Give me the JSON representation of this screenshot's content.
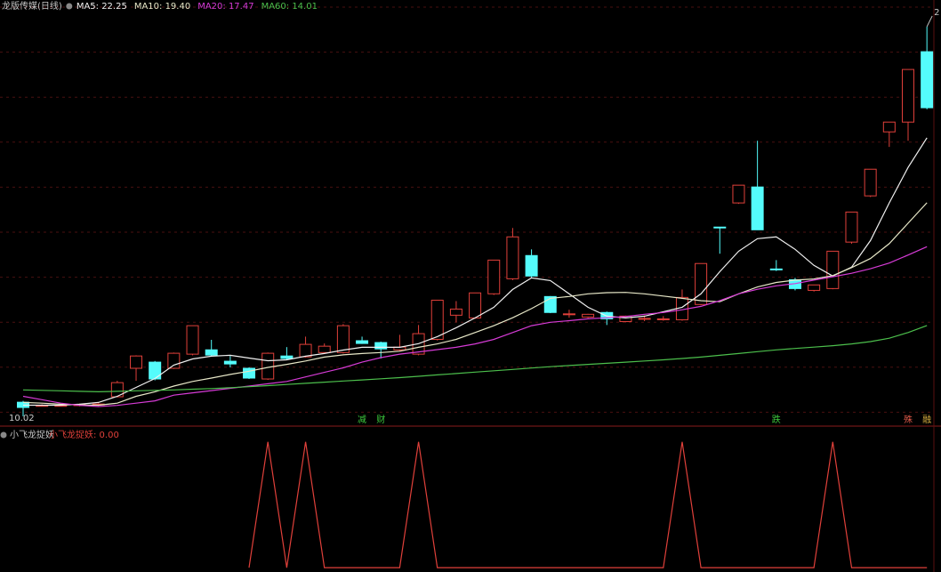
{
  "header": {
    "title": "龙版传媒(日线)"
  },
  "chart_data": [
    {
      "type": "candlestick",
      "ylim": [
        9.63,
        28.3
      ],
      "up_color": "#e0403a",
      "down_color": "#54fcfc",
      "open": [
        10.64,
        10.49,
        10.5,
        10.52,
        10.53,
        10.88,
        12.13,
        12.4,
        12.13,
        12.75,
        12.94,
        12.44,
        12.13,
        11.66,
        12.67,
        12.63,
        12.82,
        12.82,
        13.34,
        13.26,
        12.94,
        12.75,
        13.4,
        14.46,
        14.34,
        15.4,
        16.06,
        17.08,
        15.28,
        14.5,
        14.38,
        14.58,
        14.18,
        14.3,
        14.3,
        14.26,
        14.93,
        18.33,
        19.39,
        20.09,
        16.49,
        16.02,
        15.55,
        15.63,
        17.67,
        19.7,
        22.51,
        22.94,
        26.03
      ],
      "high": [
        10.7,
        10.55,
        10.56,
        10.58,
        10.6,
        11.58,
        12.7,
        12.45,
        12.82,
        14.0,
        13.38,
        12.67,
        12.17,
        12.82,
        13.06,
        13.52,
        13.22,
        14.07,
        13.52,
        13.3,
        13.6,
        14.03,
        15.12,
        15.08,
        15.44,
        16.88,
        18.29,
        17.35,
        15.3,
        14.7,
        14.52,
        14.62,
        14.44,
        14.45,
        14.42,
        15.59,
        16.73,
        18.33,
        20.17,
        22.12,
        16.88,
        16.1,
        15.79,
        17.27,
        18.99,
        20.87,
        22.94,
        25.25,
        27.13
      ],
      "low": [
        10.02,
        10.45,
        10.46,
        10.46,
        10.48,
        10.85,
        11.58,
        11.6,
        12.1,
        12.7,
        12.65,
        12.17,
        11.66,
        11.62,
        12.52,
        12.6,
        12.78,
        12.78,
        13.2,
        12.56,
        12.9,
        12.7,
        13.35,
        14.15,
        14.3,
        15.35,
        16.0,
        16.12,
        14.55,
        14.35,
        14.34,
        14.03,
        14.15,
        14.2,
        14.22,
        14.22,
        14.9,
        17.16,
        19.35,
        18.21,
        16.4,
        15.55,
        15.5,
        15.6,
        17.6,
        19.65,
        21.85,
        22.12,
        23.5
      ],
      "close": [
        10.41,
        10.5,
        10.5,
        10.53,
        10.56,
        11.5,
        12.67,
        11.66,
        12.79,
        14.0,
        12.71,
        12.32,
        11.7,
        12.79,
        12.56,
        13.18,
        13.1,
        14.0,
        13.22,
        12.98,
        13.06,
        13.65,
        15.12,
        14.73,
        15.44,
        16.88,
        17.9,
        16.18,
        14.58,
        14.52,
        14.5,
        14.3,
        14.42,
        14.32,
        14.3,
        15.24,
        16.73,
        18.3,
        20.17,
        18.21,
        16.47,
        15.63,
        15.79,
        17.27,
        18.99,
        20.87,
        22.94,
        25.25,
        23.57
      ],
      "series": [
        {
          "name": "MA5: 22.25",
          "color": "#f0f0f0",
          "values": [
            10.51,
            10.51,
            10.51,
            10.55,
            10.63,
            10.9,
            11.29,
            11.68,
            12.27,
            12.54,
            12.66,
            12.7,
            12.58,
            12.46,
            12.5,
            12.66,
            12.78,
            12.93,
            13.05,
            13.05,
            13.05,
            13.21,
            13.52,
            13.91,
            14.34,
            14.81,
            15.59,
            16.1,
            15.98,
            15.4,
            14.81,
            14.42,
            14.34,
            14.42,
            14.61,
            14.81,
            15.4,
            16.37,
            17.27,
            17.82,
            17.9,
            17.35,
            16.65,
            16.18,
            16.57,
            17.74,
            19.39,
            20.95,
            22.25
          ]
        },
        {
          "name": "MA10: 19.40",
          "color": "#e8e8c8",
          "values": [
            10.63,
            10.6,
            10.55,
            10.52,
            10.51,
            10.6,
            10.9,
            11.1,
            11.35,
            11.55,
            11.7,
            11.86,
            12.0,
            12.17,
            12.3,
            12.45,
            12.62,
            12.72,
            12.78,
            12.82,
            12.88,
            13.05,
            13.2,
            13.4,
            13.7,
            14.0,
            14.35,
            14.75,
            15.2,
            15.28,
            15.4,
            15.45,
            15.46,
            15.4,
            15.3,
            15.2,
            15.1,
            15.05,
            15.4,
            15.7,
            15.9,
            16.0,
            16.05,
            16.2,
            16.55,
            16.95,
            17.6,
            18.5,
            19.4
          ]
        },
        {
          "name": "MA20: 17.47",
          "color": "#d63bd6",
          "values": [
            10.9,
            10.75,
            10.6,
            10.5,
            10.45,
            10.5,
            10.6,
            10.7,
            10.95,
            11.05,
            11.15,
            11.25,
            11.35,
            11.45,
            11.55,
            11.75,
            11.95,
            12.15,
            12.4,
            12.6,
            12.75,
            12.85,
            12.95,
            13.05,
            13.2,
            13.4,
            13.7,
            14.0,
            14.15,
            14.22,
            14.3,
            14.35,
            14.4,
            14.5,
            14.58,
            14.7,
            14.85,
            15.1,
            15.4,
            15.6,
            15.75,
            15.85,
            16.0,
            16.15,
            16.3,
            16.5,
            16.75,
            17.1,
            17.47
          ]
        },
        {
          "name": "MA60: 14.01",
          "color": "#4cbf4c",
          "values": [
            11.18,
            11.16,
            11.14,
            11.12,
            11.1,
            11.12,
            11.14,
            11.16,
            11.18,
            11.21,
            11.24,
            11.28,
            11.32,
            11.37,
            11.42,
            11.47,
            11.52,
            11.57,
            11.62,
            11.67,
            11.72,
            11.78,
            11.84,
            11.9,
            11.96,
            12.02,
            12.08,
            12.14,
            12.2,
            12.25,
            12.3,
            12.35,
            12.4,
            12.45,
            12.5,
            12.56,
            12.62,
            12.7,
            12.78,
            12.86,
            12.94,
            13.0,
            13.06,
            13.12,
            13.2,
            13.3,
            13.45,
            13.7,
            14.01
          ]
        }
      ],
      "high_label": "2",
      "events": [
        null,
        null,
        null,
        null,
        null,
        null,
        null,
        null,
        null,
        null,
        null,
        null,
        null,
        null,
        null,
        null,
        null,
        null,
        {
          "text": "减",
          "color": "#3cc83c"
        },
        {
          "text": "财",
          "color": "#3cc83c"
        },
        null,
        null,
        null,
        null,
        null,
        null,
        null,
        null,
        null,
        null,
        null,
        null,
        null,
        null,
        null,
        null,
        null,
        null,
        null,
        null,
        {
          "text": "跌",
          "color": "#3cc83c"
        },
        null,
        null,
        null,
        null,
        null,
        null,
        {
          "text": "殊",
          "color": "#e05a4a"
        },
        {
          "text": "融",
          "color": "#d8b040"
        }
      ]
    },
    {
      "type": "line",
      "title": "小飞龙捉妖",
      "ylim": [
        -0.035,
        1.09
      ],
      "series": [
        {
          "name": "小飞龙捉妖: 0.00",
          "color": "#e0403a",
          "values": [
            null,
            null,
            null,
            null,
            null,
            null,
            null,
            null,
            null,
            null,
            null,
            null,
            0,
            1,
            0,
            1,
            0,
            0,
            0,
            0,
            0,
            1,
            0,
            0,
            0,
            0,
            0,
            0,
            0,
            0,
            0,
            0,
            0,
            0,
            0,
            1,
            0,
            0,
            0,
            0,
            0,
            0,
            0,
            1,
            0,
            0,
            0,
            0,
            0
          ]
        }
      ]
    }
  ]
}
